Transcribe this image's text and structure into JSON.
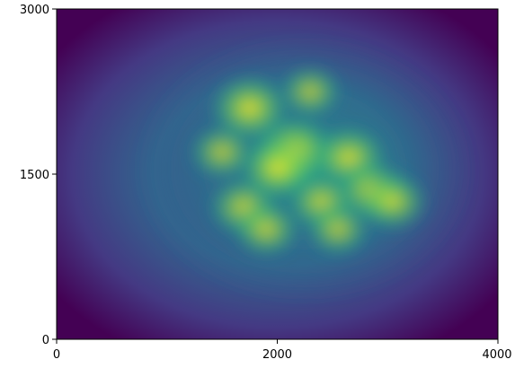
{
  "chart_data": {
    "type": "heatmap",
    "title": "",
    "xlabel": "",
    "ylabel": "",
    "xlim": [
      0,
      4000
    ],
    "ylim": [
      0,
      3000
    ],
    "x_ticks": [
      {
        "value": 0,
        "label": "0"
      },
      {
        "value": 2000,
        "label": "2000"
      },
      {
        "value": 4000,
        "label": "4000"
      }
    ],
    "y_ticks": [
      {
        "value": 0,
        "label": "0"
      },
      {
        "value": 1500,
        "label": "1500"
      },
      {
        "value": 3000,
        "label": "3000"
      }
    ],
    "colormap": "viridis",
    "colors": {
      "low": "#440154",
      "mid": "#21918c",
      "high": "#fde725",
      "axis": "#000000"
    },
    "grid": false,
    "legend": "none",
    "hotspots": [
      {
        "x": 2150,
        "y": 1700,
        "intensity": 1.0
      },
      {
        "x": 1750,
        "y": 2100,
        "intensity": 0.88
      },
      {
        "x": 2650,
        "y": 1650,
        "intensity": 0.82
      },
      {
        "x": 2850,
        "y": 1350,
        "intensity": 0.78
      },
      {
        "x": 3050,
        "y": 1250,
        "intensity": 0.7
      },
      {
        "x": 1700,
        "y": 1200,
        "intensity": 0.72
      },
      {
        "x": 1900,
        "y": 1000,
        "intensity": 0.66
      },
      {
        "x": 2400,
        "y": 1250,
        "intensity": 0.7
      },
      {
        "x": 2000,
        "y": 1550,
        "intensity": 0.84
      },
      {
        "x": 2550,
        "y": 1000,
        "intensity": 0.6
      },
      {
        "x": 1500,
        "y": 1700,
        "intensity": 0.62
      },
      {
        "x": 2300,
        "y": 2250,
        "intensity": 0.58
      }
    ]
  }
}
